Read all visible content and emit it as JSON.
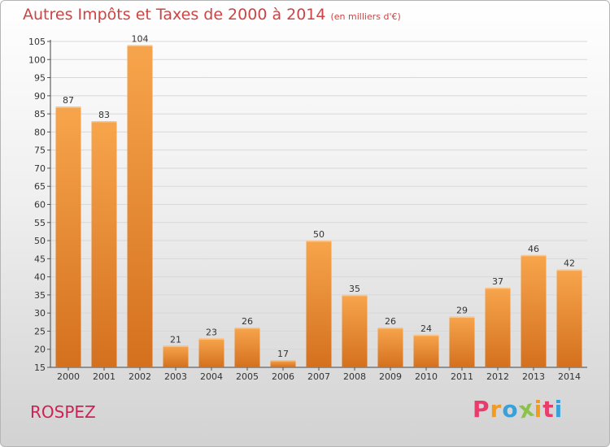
{
  "chart_data": {
    "type": "bar",
    "title": "Autres Impôts et Taxes de 2000 à 2014",
    "unit": "(en milliers d'€)",
    "categories": [
      "2000",
      "2001",
      "2002",
      "2003",
      "2004",
      "2005",
      "2006",
      "2007",
      "2008",
      "2009",
      "2010",
      "2011",
      "2012",
      "2013",
      "2014"
    ],
    "values": [
      87,
      83,
      104,
      21,
      23,
      26,
      17,
      50,
      35,
      26,
      24,
      29,
      37,
      46,
      42
    ],
    "ylim": [
      15,
      105
    ],
    "yticks": [
      15,
      20,
      25,
      30,
      35,
      40,
      45,
      50,
      55,
      60,
      65,
      70,
      75,
      80,
      85,
      90,
      95,
      100,
      105
    ],
    "grid": true,
    "legend": "none",
    "colors": {
      "bar_light": "#f7a54c",
      "bar_dark": "#d4701e",
      "title": "#cc4444",
      "grid": "#d8d8d8"
    }
  },
  "footer": {
    "place": "ROSPEZ",
    "logo": {
      "letters": [
        "P",
        "r",
        "o",
        "x",
        "i",
        "t",
        "i"
      ],
      "colors": [
        "#e83c6c",
        "#f39a1f",
        "#3aa0d8",
        "#8bc34a",
        "#f39a1f",
        "#e83c6c",
        "#3aa0d8"
      ]
    }
  }
}
